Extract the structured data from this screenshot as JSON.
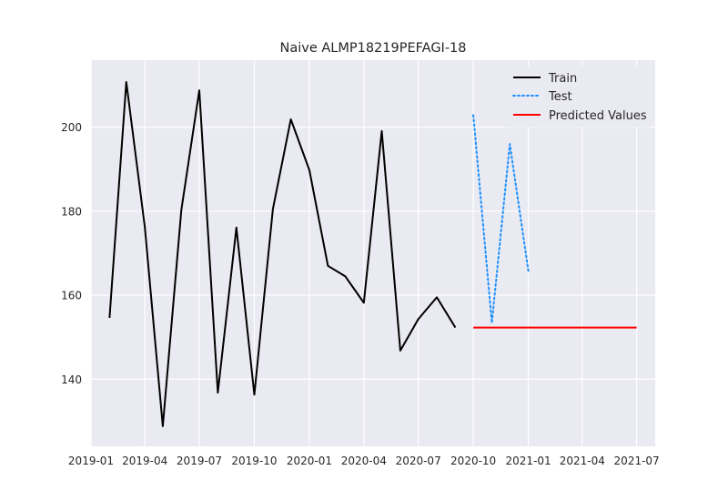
{
  "chart_data": {
    "type": "line",
    "title": "Naive ALMP18219PEFAGI-18",
    "xlabel": "",
    "ylabel": "",
    "x_axis_type": "date",
    "xlim": [
      "2019-01-01",
      "2021-08-01"
    ],
    "ylim": [
      124,
      216
    ],
    "x_ticks": [
      "2019-01",
      "2019-04",
      "2019-07",
      "2019-10",
      "2020-01",
      "2020-04",
      "2020-07",
      "2020-10",
      "2021-01",
      "2021-04",
      "2021-07"
    ],
    "y_ticks": [
      140,
      160,
      180,
      200
    ],
    "grid": true,
    "background": "#eaeaf2",
    "legend_position": "top-right",
    "series": [
      {
        "name": "Train",
        "color": "#000000",
        "style": "solid",
        "x": [
          "2019-02-01",
          "2019-03-01",
          "2019-04-01",
          "2019-05-01",
          "2019-06-01",
          "2019-07-01",
          "2019-08-01",
          "2019-09-01",
          "2019-10-01",
          "2019-11-01",
          "2019-12-01",
          "2020-01-01",
          "2020-02-01",
          "2020-03-01",
          "2020-04-01",
          "2020-05-01",
          "2020-06-01",
          "2020-07-01",
          "2020-08-01",
          "2020-09-01"
        ],
        "values": [
          154.6,
          210.8,
          176.2,
          128.8,
          180.3,
          208.8,
          136.8,
          176.1,
          136.3,
          180.5,
          201.9,
          189.8,
          167.0,
          164.5,
          158.2,
          199.1,
          146.8,
          154.3,
          159.5,
          152.3
        ]
      },
      {
        "name": "Test",
        "color": "#1e90ff",
        "style": "dotted",
        "x": [
          "2020-10-01",
          "2020-11-01",
          "2020-12-01",
          "2021-01-01"
        ],
        "values": [
          202.9,
          153.4,
          196.0,
          165.8
        ]
      },
      {
        "name": "Predicted Values",
        "color": "#ff0000",
        "style": "solid",
        "x": [
          "2020-10-01",
          "2021-07-01"
        ],
        "values": [
          152.3,
          152.3
        ]
      }
    ]
  }
}
